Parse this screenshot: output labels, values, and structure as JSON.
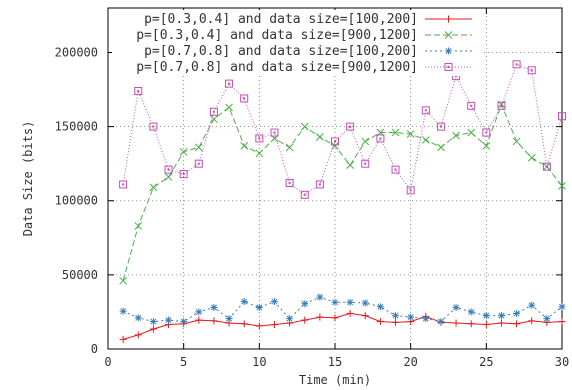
{
  "chart_data": {
    "type": "line",
    "xlabel": "Time (min)",
    "ylabel": "Data Size (bits)",
    "xlim": [
      0,
      30
    ],
    "ylim": [
      0,
      230000
    ],
    "x_ticks": [
      0,
      5,
      10,
      15,
      20,
      25,
      30
    ],
    "y_ticks": [
      0,
      50000,
      100000,
      150000,
      200000
    ],
    "grid": true,
    "legend_position": "top",
    "x": [
      1,
      2,
      3,
      4,
      5,
      6,
      7,
      8,
      9,
      10,
      11,
      12,
      13,
      14,
      15,
      16,
      17,
      18,
      19,
      20,
      21,
      22,
      23,
      24,
      25,
      26,
      27,
      28,
      29,
      30
    ],
    "series": [
      {
        "name": "p=[0.3,0.4] and data size=[100,200]",
        "color": "#e41a1c",
        "marker": "plus",
        "dash": "",
        "values": [
          6500,
          9500,
          13500,
          16500,
          17000,
          19500,
          19000,
          17500,
          17000,
          15500,
          16500,
          17500,
          19500,
          21500,
          21000,
          24000,
          22500,
          18500,
          18000,
          18500,
          22000,
          18000,
          17500,
          17000,
          16500,
          17500,
          17000,
          19000,
          18000,
          18500
        ]
      },
      {
        "name": "p=[0.3,0.4] and data size=[900,1200]",
        "color": "#4daf4a",
        "marker": "x",
        "dash": "6,3",
        "values": [
          46000,
          83000,
          109000,
          116000,
          133000,
          136000,
          155000,
          163000,
          137000,
          132000,
          142000,
          136000,
          150000,
          143000,
          137000,
          124000,
          140000,
          146000,
          146000,
          145000,
          141000,
          136000,
          144000,
          146000,
          137000,
          165000,
          140000,
          129000,
          123000,
          110000
        ]
      },
      {
        "name": "p=[0.7,0.8] and data size=[100,200]",
        "color": "#377eb8",
        "marker": "star",
        "dash": "2,3",
        "values": [
          25500,
          21000,
          18500,
          19500,
          18500,
          25000,
          28000,
          20500,
          32000,
          28000,
          32000,
          20500,
          30500,
          35000,
          31500,
          31500,
          31000,
          28500,
          22500,
          21500,
          20500,
          18500,
          28000,
          25000,
          22500,
          22500,
          24000,
          29500,
          20500,
          28500
        ]
      },
      {
        "name": "p=[0.7,0.8] and data size=[900,1200]",
        "color": "#c050b0",
        "marker": "square",
        "dash": "1,2",
        "values": [
          111000,
          174000,
          150000,
          121000,
          118000,
          125000,
          160000,
          179000,
          169000,
          142000,
          146000,
          112000,
          104000,
          111000,
          140000,
          150000,
          125000,
          142000,
          121000,
          107000,
          161000,
          150000,
          184000,
          164000,
          146000,
          164000,
          192000,
          188000,
          123000,
          157000
        ]
      }
    ]
  }
}
